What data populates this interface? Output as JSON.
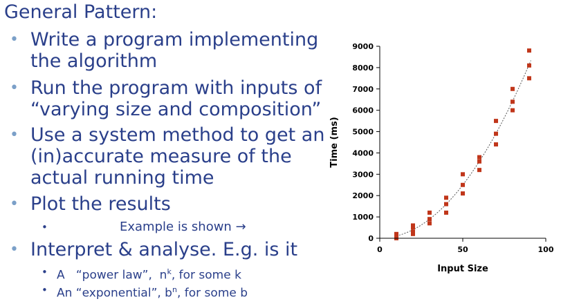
{
  "slide": {
    "heading": "General Pattern:",
    "bullets": [
      {
        "line1": "Write a program implementing",
        "line2": "the algorithm"
      },
      {
        "line1": "Run the program with inputs of",
        "line2": "“varying size and composition”"
      },
      {
        "line1": "Use a system method to get an",
        "line2": "(in)accurate measure of the",
        "line3": "actual running time"
      },
      {
        "line1": "Plot the results"
      },
      {
        "line1": "Interpret & analyse. E.g. is it"
      }
    ],
    "example_note": "Example is shown →",
    "sub_power": {
      "prefix": "A   “power law”,  n",
      "sup": "k",
      "suffix": ", for some k"
    },
    "sub_exp": {
      "prefix": "An “exponential”, b",
      "sup": "n",
      "suffix": ", for some b"
    },
    "bullet_glyph": "•",
    "colors": {
      "text": "#2a3f8a",
      "bullet": "#7ba0c8",
      "points": "#c0361a"
    }
  },
  "chart_data": {
    "type": "scatter",
    "xlabel": "Input Size",
    "ylabel": "Time (ms)",
    "xlim": [
      0,
      100
    ],
    "ylim": [
      0,
      9000
    ],
    "xticks": [
      0,
      50,
      100
    ],
    "yticks": [
      0,
      1000,
      2000,
      3000,
      4000,
      5000,
      6000,
      7000,
      8000,
      9000
    ],
    "grid": false,
    "trendline": "dotted power curve",
    "points": [
      [
        10,
        0
      ],
      [
        10,
        100
      ],
      [
        10,
        200
      ],
      [
        20,
        200
      ],
      [
        20,
        300
      ],
      [
        20,
        500
      ],
      [
        20,
        600
      ],
      [
        30,
        700
      ],
      [
        30,
        900
      ],
      [
        30,
        1200
      ],
      [
        40,
        1200
      ],
      [
        40,
        1600
      ],
      [
        40,
        1900
      ],
      [
        50,
        2100
      ],
      [
        50,
        2500
      ],
      [
        50,
        3000
      ],
      [
        60,
        3200
      ],
      [
        60,
        3600
      ],
      [
        60,
        3800
      ],
      [
        70,
        4400
      ],
      [
        70,
        4900
      ],
      [
        70,
        5500
      ],
      [
        80,
        6000
      ],
      [
        80,
        6400
      ],
      [
        80,
        7000
      ],
      [
        90,
        7500
      ],
      [
        90,
        8100
      ],
      [
        90,
        8800
      ]
    ]
  }
}
